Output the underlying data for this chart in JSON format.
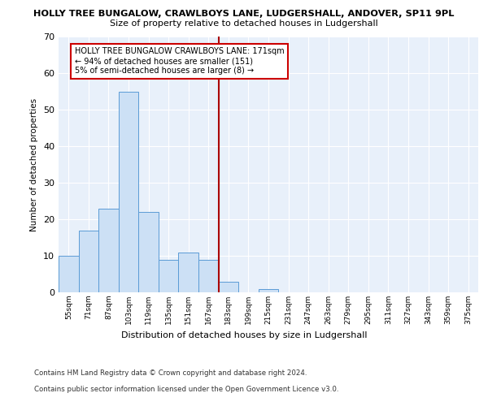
{
  "title": "HOLLY TREE BUNGALOW, CRAWLBOYS LANE, LUDGERSHALL, ANDOVER, SP11 9PL",
  "subtitle": "Size of property relative to detached houses in Ludgershall",
  "xlabel": "Distribution of detached houses by size in Ludgershall",
  "ylabel": "Number of detached properties",
  "bar_labels": [
    "55sqm",
    "71sqm",
    "87sqm",
    "103sqm",
    "119sqm",
    "135sqm",
    "151sqm",
    "167sqm",
    "183sqm",
    "199sqm",
    "215sqm",
    "231sqm",
    "247sqm",
    "263sqm",
    "279sqm",
    "295sqm",
    "311sqm",
    "327sqm",
    "343sqm",
    "359sqm",
    "375sqm"
  ],
  "bar_values": [
    10,
    17,
    23,
    55,
    22,
    9,
    11,
    9,
    3,
    0,
    1,
    0,
    0,
    0,
    0,
    0,
    0,
    0,
    0,
    0,
    0
  ],
  "bar_color": "#cce0f5",
  "bar_edgecolor": "#5b9bd5",
  "vline_x": 7.5,
  "vline_color": "#aa0000",
  "annotation_title": "HOLLY TREE BUNGALOW CRAWLBOYS LANE: 171sqm",
  "annotation_line1": "← 94% of detached houses are smaller (151)",
  "annotation_line2": "5% of semi-detached houses are larger (8) →",
  "ylim": [
    0,
    70
  ],
  "yticks": [
    0,
    10,
    20,
    30,
    40,
    50,
    60,
    70
  ],
  "plot_bg_color": "#e8f0fa",
  "footer1": "Contains HM Land Registry data © Crown copyright and database right 2024.",
  "footer2": "Contains public sector information licensed under the Open Government Licence v3.0."
}
